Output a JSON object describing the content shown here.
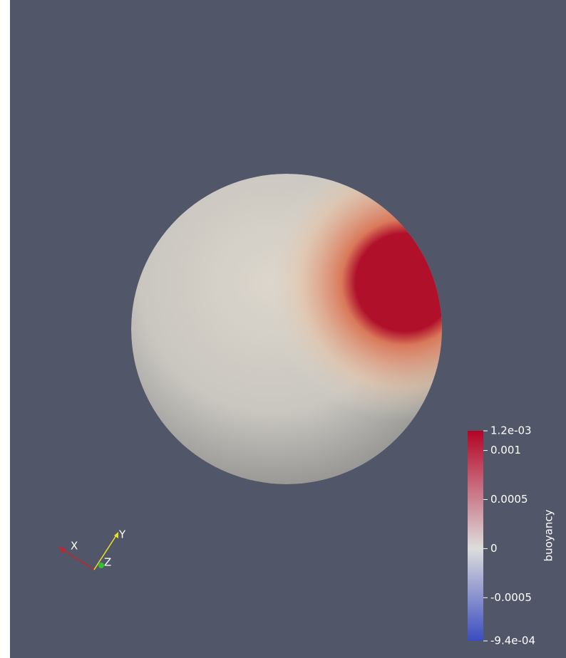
{
  "view": {
    "axes": {
      "x": "X",
      "y": "Y",
      "z": "Z"
    }
  },
  "colorbar": {
    "title": "buoyancy",
    "ticks": [
      {
        "value": 0.0012,
        "label": "1.2e-03"
      },
      0.001,
      0.0005,
      0,
      -0.0005,
      {
        "value": -0.00094,
        "label": "-9.4e-04"
      }
    ]
  }
}
